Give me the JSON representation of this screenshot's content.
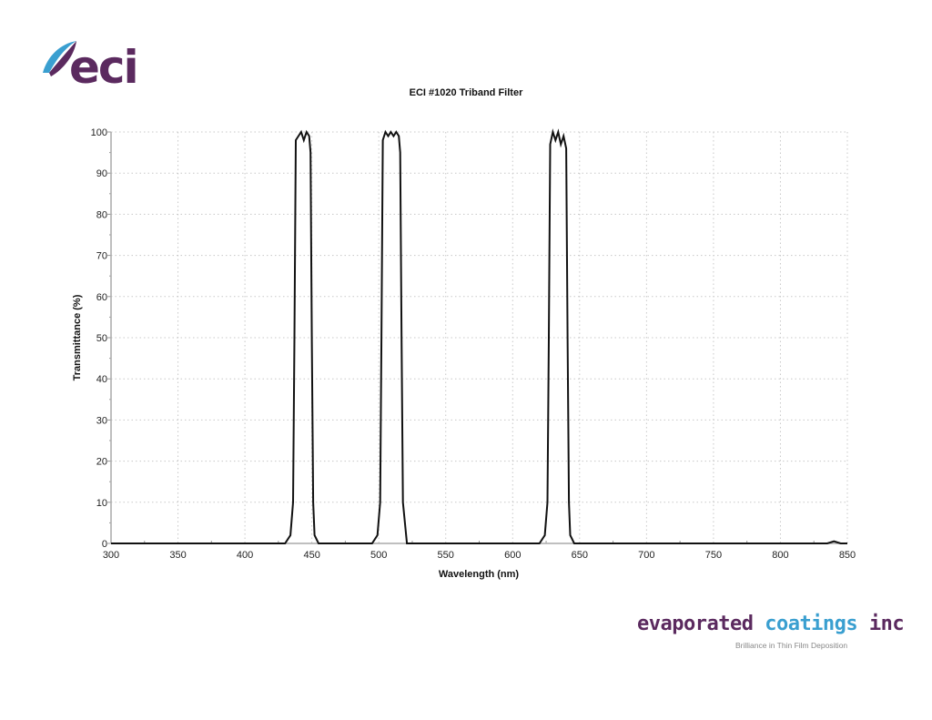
{
  "logo": {
    "text": "eci",
    "swoosh_color": "#3a9fd0",
    "text_color": "#5b2a5f"
  },
  "footer": {
    "brand_part1": "evaporated ",
    "brand_part2": "coatings",
    "brand_part3": " inc",
    "tagline": "Brilliance in Thin Film Deposition",
    "colors": {
      "purple": "#5b2a5f",
      "blue": "#3a9fd0"
    }
  },
  "chart_data": {
    "type": "line",
    "title": "ECI #1020 Triband Filter",
    "xlabel": "Wavelength (nm)",
    "ylabel": "Transmittance (%)",
    "xlim": [
      300,
      850
    ],
    "ylim": [
      0,
      100
    ],
    "x_ticks": [
      "300",
      "350",
      "400",
      "450",
      "500",
      "550",
      "600",
      "650",
      "700",
      "750",
      "800",
      "850"
    ],
    "y_ticks": [
      "0",
      "10",
      "20",
      "30",
      "40",
      "50",
      "60",
      "70",
      "80",
      "90",
      "100"
    ],
    "grid": true,
    "legend": null,
    "series": [
      {
        "name": "Transmittance",
        "x": [
          300,
          430,
          434,
          436,
          437,
          438,
          440,
          442,
          444,
          446,
          448,
          449,
          450,
          451,
          452,
          455,
          495,
          499,
          501,
          502,
          503,
          505,
          507,
          509,
          511,
          513,
          515,
          516,
          517,
          518,
          521,
          620,
          624,
          626,
          627,
          628,
          630,
          632,
          634,
          636,
          638,
          640,
          641,
          642,
          643,
          646,
          835,
          840,
          845,
          850
        ],
        "y": [
          0,
          0,
          2,
          10,
          50,
          98,
          99,
          100,
          98,
          100,
          99,
          95,
          50,
          10,
          2,
          0,
          0,
          2,
          10,
          50,
          98,
          100,
          99,
          100,
          99,
          100,
          99,
          95,
          50,
          10,
          0,
          0,
          2,
          10,
          50,
          97,
          100,
          98,
          100,
          97,
          99,
          96,
          50,
          10,
          2,
          0,
          0,
          0.5,
          0,
          0
        ]
      }
    ]
  }
}
